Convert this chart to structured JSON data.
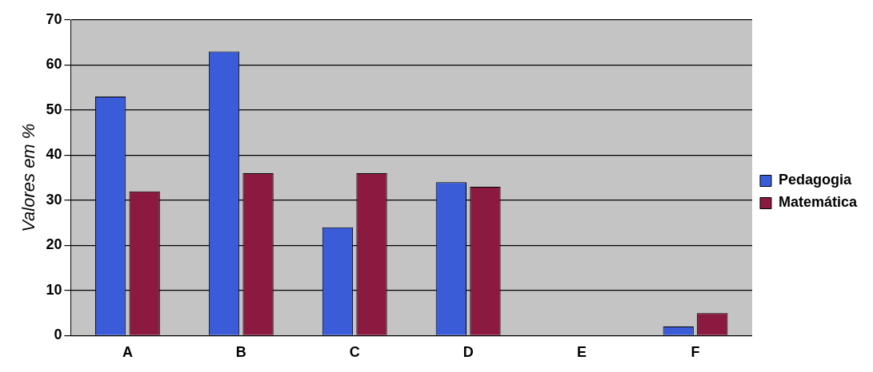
{
  "chart_data": {
    "type": "bar",
    "ylabel": "Valores em %",
    "categories": [
      "A",
      "B",
      "C",
      "D",
      "E",
      "F"
    ],
    "series": [
      {
        "name": "Pedagogia",
        "color": "#3a5cd8",
        "values": [
          53,
          63,
          24,
          34,
          0,
          2
        ]
      },
      {
        "name": "Matemática",
        "color": "#8c1a40",
        "values": [
          32,
          36,
          36,
          33,
          0,
          5
        ]
      }
    ],
    "ylim": [
      0,
      70
    ],
    "yticks": [
      0,
      10,
      20,
      30,
      40,
      50,
      60,
      70
    ],
    "grid": "y",
    "legend": "right"
  }
}
